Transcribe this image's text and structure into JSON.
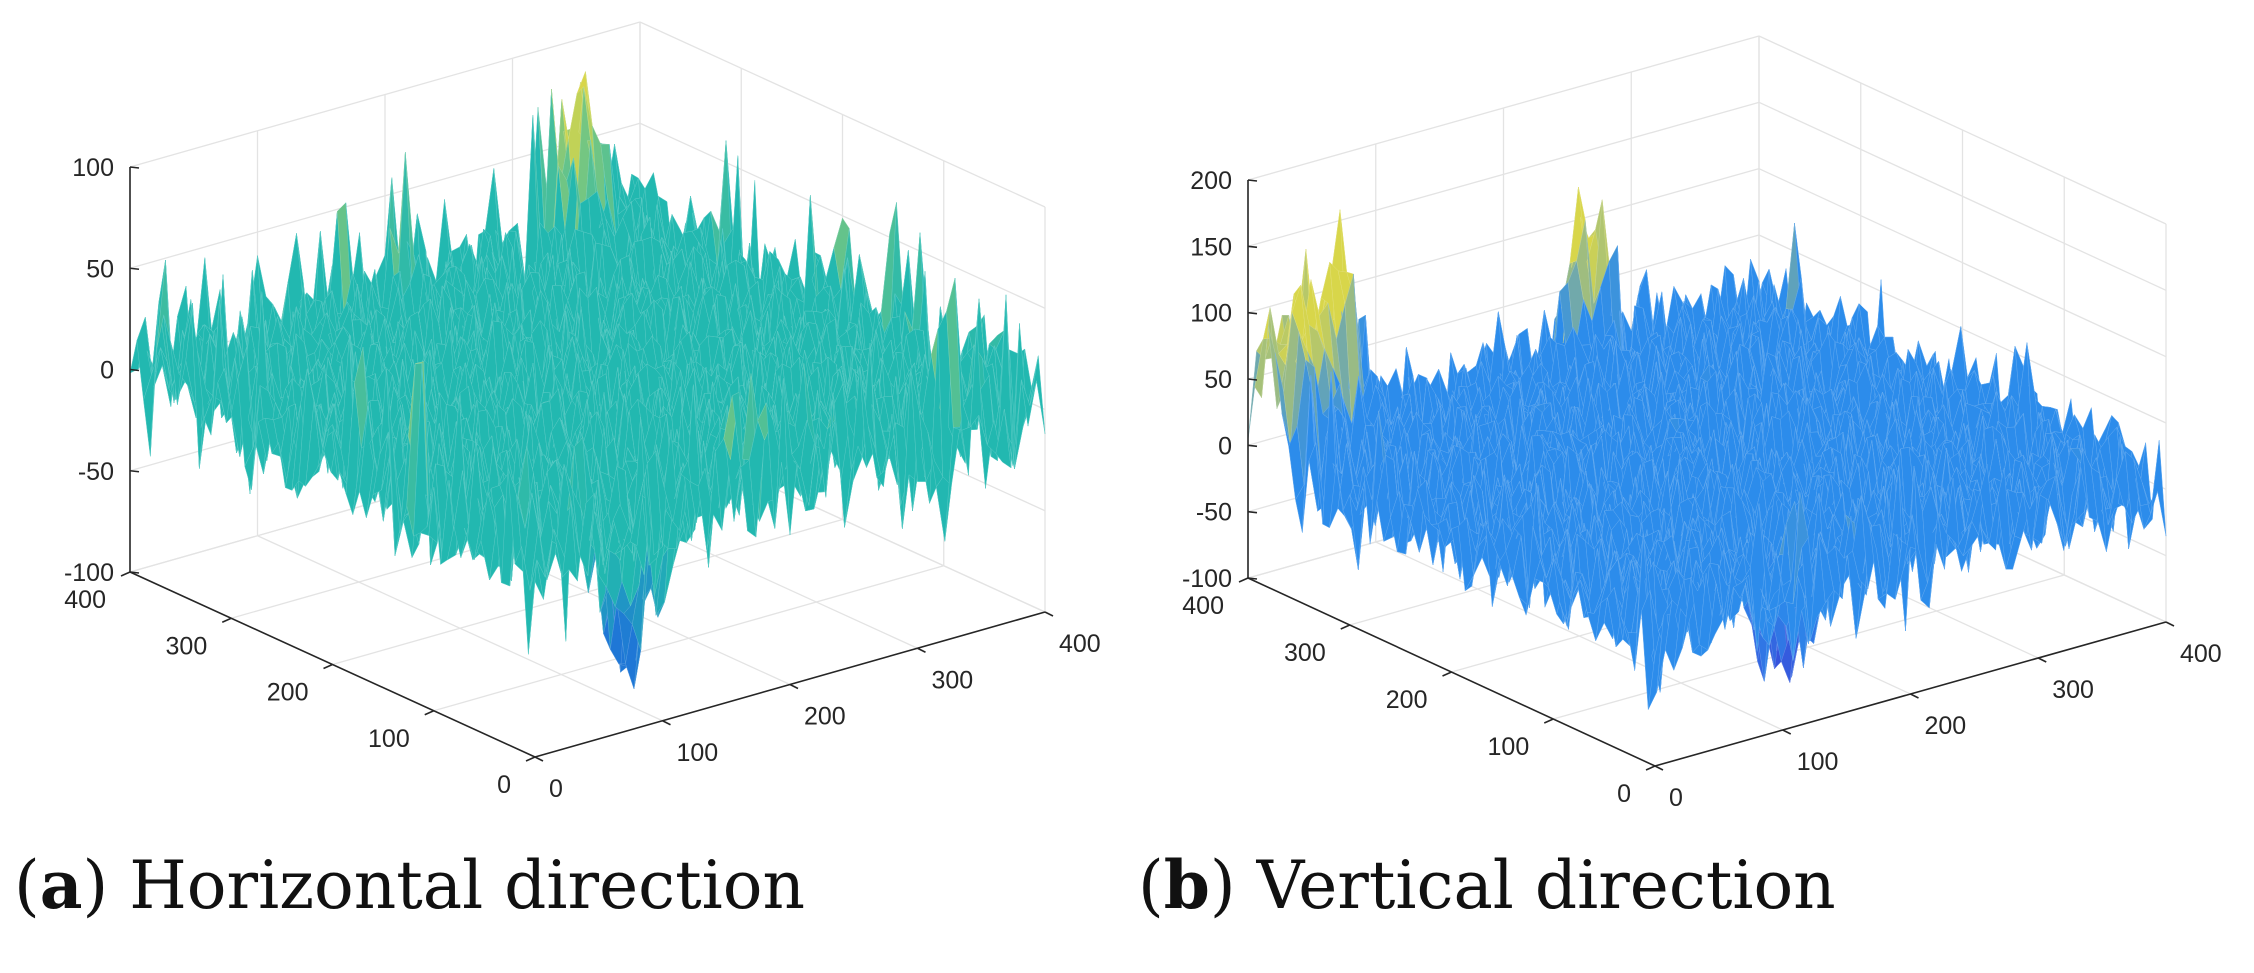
{
  "chart_data": [
    {
      "type": "surface",
      "panel": "a",
      "caption_label": "a",
      "caption_text": "Horizontal direction",
      "x_ticks": [
        "0",
        "100",
        "200",
        "300",
        "400"
      ],
      "y_ticks": [
        "0",
        "100",
        "200",
        "300",
        "400"
      ],
      "z_ticks": [
        "-100",
        "-50",
        "0",
        "50",
        "100"
      ],
      "xlim": [
        0,
        400
      ],
      "ylim": [
        0,
        400
      ],
      "zlim": [
        -100,
        100
      ],
      "grid": true,
      "colors": {
        "base": "#22b8b0",
        "low": "#1f77d6",
        "high": "#d8d64a"
      },
      "summary": {
        "typical_min": -30,
        "typical_max": 30,
        "extreme_min": -100,
        "extreme_max": 100
      },
      "peaks": [
        {
          "x": 340,
          "y": 390,
          "z": 100,
          "w": 22,
          "label": "plateau near rear corner"
        },
        {
          "x": 200,
          "y": 380,
          "z": 70,
          "w": 10,
          "label": "left rear spike"
        },
        {
          "x": 395,
          "y": 200,
          "z": 80,
          "w": 10,
          "label": "right rear spikes"
        },
        {
          "x": 120,
          "y": 60,
          "z": -90,
          "w": 30,
          "label": "front dip"
        }
      ]
    },
    {
      "type": "surface",
      "panel": "b",
      "caption_label": "b",
      "caption_text": "Vertical direction",
      "x_ticks": [
        "0",
        "100",
        "200",
        "300",
        "400"
      ],
      "y_ticks": [
        "0",
        "100",
        "200",
        "300",
        "400"
      ],
      "z_ticks": [
        "-100",
        "-50",
        "0",
        "50",
        "100",
        "150",
        "200"
      ],
      "xlim": [
        0,
        400
      ],
      "ylim": [
        0,
        400
      ],
      "zlim": [
        -100,
        200
      ],
      "grid": true,
      "colors": {
        "base": "#2c8ceb",
        "low": "#3a3fd6",
        "high": "#d8d64a"
      },
      "summary": {
        "typical_min": -40,
        "typical_max": 40,
        "extreme_min": -100,
        "extreme_max": 170
      },
      "peaks": [
        {
          "x": 20,
          "y": 380,
          "z": 150,
          "w": 24,
          "label": "left rear ridge"
        },
        {
          "x": 60,
          "y": 390,
          "z": 160,
          "w": 20,
          "label": "left rear ridge 2"
        },
        {
          "x": 260,
          "y": 395,
          "z": 150,
          "w": 18,
          "label": "rear plateau"
        },
        {
          "x": 150,
          "y": 60,
          "z": -95,
          "w": 30,
          "label": "front dip"
        }
      ]
    }
  ]
}
